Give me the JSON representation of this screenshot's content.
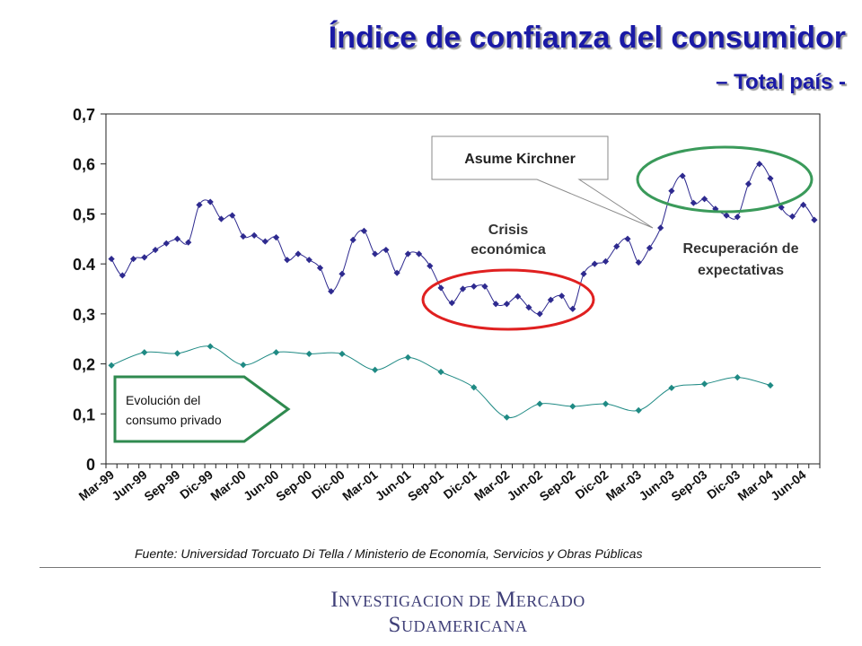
{
  "title": "Índice de confianza del consumidor",
  "subtitle": "– Total país -",
  "source": "Fuente: Universidad Torcuato Di Tella / Ministerio de Economía, Servicios y Obras Públicas",
  "footer": {
    "line1_cap1": "I",
    "line1_rest1": "NVESTIGACION DE ",
    "line1_cap2": "M",
    "line1_rest2": "ERCADO",
    "line2_cap": "S",
    "line2_rest": "UDAMERICANA"
  },
  "colors": {
    "title": "#1a1aa6",
    "icc_series": "#2e2a8f",
    "consumo_series": "#1f8a84",
    "crisis_circle": "#e02020",
    "recovery_circle": "#3a9a5a",
    "arrow_border": "#2f8a4f"
  },
  "annotations": {
    "kirchner": "Asume Kirchner",
    "crisis": [
      "Crisis",
      "económica"
    ],
    "recovery": [
      "Recuperación de",
      "expectativas"
    ],
    "consumo": [
      "Evolución del",
      "consumo privado"
    ]
  },
  "chart_data": {
    "type": "line",
    "ylim": [
      0,
      0.7
    ],
    "ytick_labels": [
      "0",
      "0,1",
      "0,2",
      "0,3",
      "0.4",
      "0,5",
      "0,6",
      "0,7"
    ],
    "ytick_values": [
      0,
      0.1,
      0.2,
      0.3,
      0.4,
      0.5,
      0.6,
      0.7
    ],
    "x_tick_labels": [
      "Mar-99",
      "Jun-99",
      "Sep-99",
      "Dic-99",
      "Mar-00",
      "Jun-00",
      "Sep-00",
      "Dic-00",
      "Mar-01",
      "Jun-01",
      "Sep-01",
      "Dic-01",
      "Mar-02",
      "Jun-02",
      "Sep-02",
      "Dic-02",
      "Mar-03",
      "Jun-03",
      "Sep-03",
      "Dic-03",
      "Mar-04",
      "Jun-04"
    ],
    "months_total": 65,
    "grid": false,
    "series": [
      {
        "name": "",
        "start": "Mar-99",
        "step": "monthly",
        "values": [
          0.41,
          0.377,
          0.41,
          0.413,
          0.428,
          0.441,
          0.45,
          0.443,
          0.518,
          0.524,
          0.49,
          0.497,
          0.455,
          0.457,
          0.445,
          0.453,
          0.408,
          0.42,
          0.408,
          0.392,
          0.345,
          0.38,
          0.448,
          0.466,
          0.42,
          0.428,
          0.382,
          0.42,
          0.42,
          0.396,
          0.352,
          0.322,
          0.35,
          0.355,
          0.355,
          0.32,
          0.32,
          0.335,
          0.313,
          0.3,
          0.328,
          0.336,
          0.31,
          0.38,
          0.4,
          0.405,
          0.435,
          0.45,
          0.403,
          0.432,
          0.472,
          0.546,
          0.576,
          0.522,
          0.53,
          0.51,
          0.497,
          0.494,
          0.56,
          0.6,
          0.571,
          0.513,
          0.495,
          0.518,
          0.488
        ]
      },
      {
        "name": "",
        "start": "Mar-99",
        "step": "quarterly",
        "values": [
          0.197,
          0.223,
          0.221,
          0.235,
          0.198,
          0.223,
          0.22,
          0.22,
          0.188,
          0.213,
          0.184,
          0.153,
          0.093,
          0.12,
          0.115,
          0.12,
          0.107,
          0.152,
          0.16,
          0.173,
          0.157
        ]
      }
    ]
  }
}
